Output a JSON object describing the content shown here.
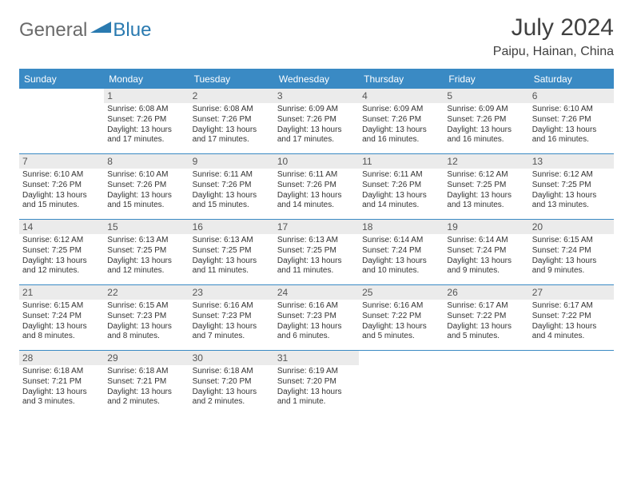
{
  "brand": {
    "part1": "General",
    "part2": "Blue"
  },
  "title": "July 2024",
  "location": "Paipu, Hainan, China",
  "colors": {
    "header_bg": "#3a8ac4",
    "header_fg": "#ffffff",
    "daynum_bg": "#ebebeb",
    "daynum_fg": "#555555",
    "rule": "#3a8ac4",
    "text": "#333333",
    "brand_gray": "#6a6a6a",
    "brand_blue": "#2a7ab0"
  },
  "day_headers": [
    "Sunday",
    "Monday",
    "Tuesday",
    "Wednesday",
    "Thursday",
    "Friday",
    "Saturday"
  ],
  "weeks": [
    [
      null,
      {
        "n": "1",
        "sr": "6:08 AM",
        "ss": "7:26 PM",
        "dl": "13 hours and 17 minutes."
      },
      {
        "n": "2",
        "sr": "6:08 AM",
        "ss": "7:26 PM",
        "dl": "13 hours and 17 minutes."
      },
      {
        "n": "3",
        "sr": "6:09 AM",
        "ss": "7:26 PM",
        "dl": "13 hours and 17 minutes."
      },
      {
        "n": "4",
        "sr": "6:09 AM",
        "ss": "7:26 PM",
        "dl": "13 hours and 16 minutes."
      },
      {
        "n": "5",
        "sr": "6:09 AM",
        "ss": "7:26 PM",
        "dl": "13 hours and 16 minutes."
      },
      {
        "n": "6",
        "sr": "6:10 AM",
        "ss": "7:26 PM",
        "dl": "13 hours and 16 minutes."
      }
    ],
    [
      {
        "n": "7",
        "sr": "6:10 AM",
        "ss": "7:26 PM",
        "dl": "13 hours and 15 minutes."
      },
      {
        "n": "8",
        "sr": "6:10 AM",
        "ss": "7:26 PM",
        "dl": "13 hours and 15 minutes."
      },
      {
        "n": "9",
        "sr": "6:11 AM",
        "ss": "7:26 PM",
        "dl": "13 hours and 15 minutes."
      },
      {
        "n": "10",
        "sr": "6:11 AM",
        "ss": "7:26 PM",
        "dl": "13 hours and 14 minutes."
      },
      {
        "n": "11",
        "sr": "6:11 AM",
        "ss": "7:26 PM",
        "dl": "13 hours and 14 minutes."
      },
      {
        "n": "12",
        "sr": "6:12 AM",
        "ss": "7:25 PM",
        "dl": "13 hours and 13 minutes."
      },
      {
        "n": "13",
        "sr": "6:12 AM",
        "ss": "7:25 PM",
        "dl": "13 hours and 13 minutes."
      }
    ],
    [
      {
        "n": "14",
        "sr": "6:12 AM",
        "ss": "7:25 PM",
        "dl": "13 hours and 12 minutes."
      },
      {
        "n": "15",
        "sr": "6:13 AM",
        "ss": "7:25 PM",
        "dl": "13 hours and 12 minutes."
      },
      {
        "n": "16",
        "sr": "6:13 AM",
        "ss": "7:25 PM",
        "dl": "13 hours and 11 minutes."
      },
      {
        "n": "17",
        "sr": "6:13 AM",
        "ss": "7:25 PM",
        "dl": "13 hours and 11 minutes."
      },
      {
        "n": "18",
        "sr": "6:14 AM",
        "ss": "7:24 PM",
        "dl": "13 hours and 10 minutes."
      },
      {
        "n": "19",
        "sr": "6:14 AM",
        "ss": "7:24 PM",
        "dl": "13 hours and 9 minutes."
      },
      {
        "n": "20",
        "sr": "6:15 AM",
        "ss": "7:24 PM",
        "dl": "13 hours and 9 minutes."
      }
    ],
    [
      {
        "n": "21",
        "sr": "6:15 AM",
        "ss": "7:24 PM",
        "dl": "13 hours and 8 minutes."
      },
      {
        "n": "22",
        "sr": "6:15 AM",
        "ss": "7:23 PM",
        "dl": "13 hours and 8 minutes."
      },
      {
        "n": "23",
        "sr": "6:16 AM",
        "ss": "7:23 PM",
        "dl": "13 hours and 7 minutes."
      },
      {
        "n": "24",
        "sr": "6:16 AM",
        "ss": "7:23 PM",
        "dl": "13 hours and 6 minutes."
      },
      {
        "n": "25",
        "sr": "6:16 AM",
        "ss": "7:22 PM",
        "dl": "13 hours and 5 minutes."
      },
      {
        "n": "26",
        "sr": "6:17 AM",
        "ss": "7:22 PM",
        "dl": "13 hours and 5 minutes."
      },
      {
        "n": "27",
        "sr": "6:17 AM",
        "ss": "7:22 PM",
        "dl": "13 hours and 4 minutes."
      }
    ],
    [
      {
        "n": "28",
        "sr": "6:18 AM",
        "ss": "7:21 PM",
        "dl": "13 hours and 3 minutes."
      },
      {
        "n": "29",
        "sr": "6:18 AM",
        "ss": "7:21 PM",
        "dl": "13 hours and 2 minutes."
      },
      {
        "n": "30",
        "sr": "6:18 AM",
        "ss": "7:20 PM",
        "dl": "13 hours and 2 minutes."
      },
      {
        "n": "31",
        "sr": "6:19 AM",
        "ss": "7:20 PM",
        "dl": "13 hours and 1 minute."
      },
      null,
      null,
      null
    ]
  ],
  "labels": {
    "sunrise": "Sunrise:",
    "sunset": "Sunset:",
    "daylight": "Daylight:"
  }
}
